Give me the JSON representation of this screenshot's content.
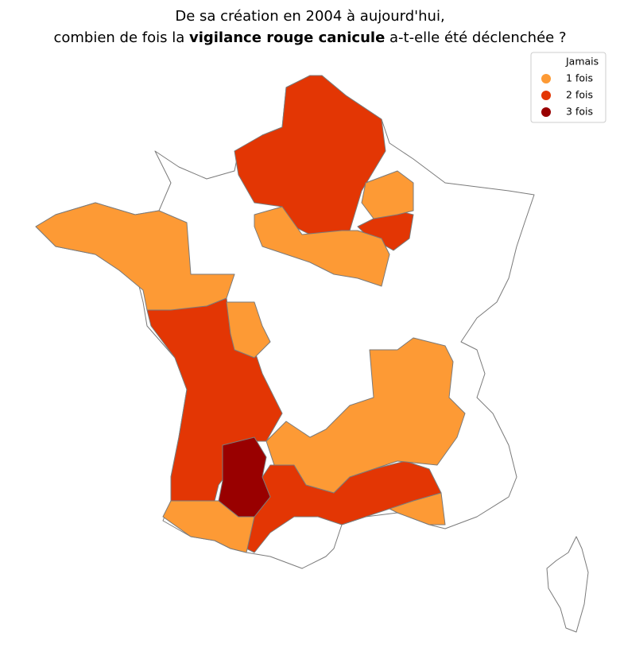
{
  "title": {
    "line1": "De sa création en 2004 à aujourd'hui,",
    "line2_before": "combien de fois la ",
    "line2_bold": "vigilance rouge canicule",
    "line2_after": " a-t-elle été déclenchée ?"
  },
  "legend": [
    {
      "label": "Jamais",
      "color": "#ffffff"
    },
    {
      "label": "1 fois",
      "color": "#fd9a35"
    },
    {
      "label": "2 fois",
      "color": "#e33604"
    },
    {
      "label": "3 fois",
      "color": "#990000"
    }
  ]
}
